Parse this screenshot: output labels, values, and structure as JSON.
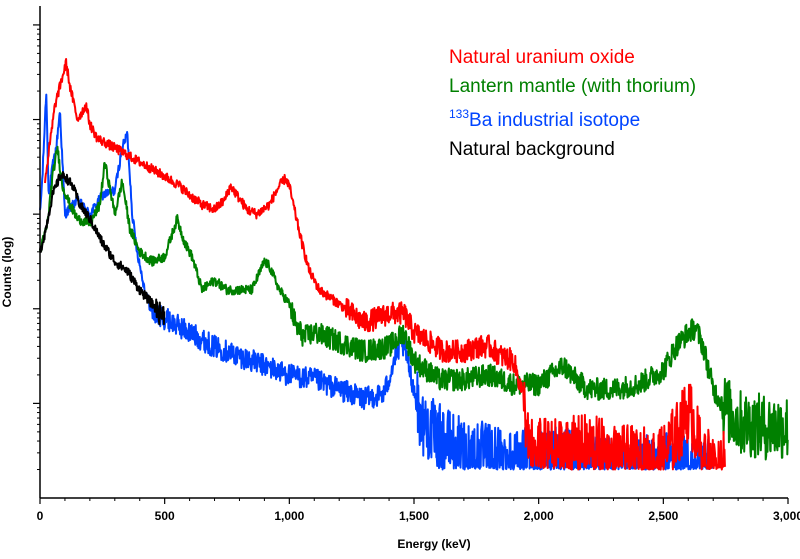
{
  "chart_data": {
    "type": "line",
    "xlabel": "Energy (keV)",
    "ylabel": "Counts (log)",
    "xlim": [
      0,
      3000
    ],
    "y_scale": "log",
    "ylim_decades": [
      0,
      5.2
    ],
    "x_ticks": [
      0,
      500,
      1000,
      1500,
      2000,
      2500,
      3000
    ],
    "x_tick_labels": [
      "0",
      "500",
      "1,000",
      "1,500",
      "2,000",
      "2,500",
      "3,000"
    ],
    "y_tick_decades": [
      1,
      2,
      3,
      4,
      5
    ],
    "y_tick_labels": [],
    "grid": false,
    "legend_position": "top-right",
    "series": [
      {
        "name": "Natural uranium oxide",
        "color": "#ff0000",
        "x": [
          20,
          60,
          90,
          105,
          120,
          150,
          185,
          200,
          230,
          300,
          400,
          500,
          560,
          600,
          650,
          700,
          740,
          765,
          790,
          830,
          870,
          920,
          960,
          985,
          1000,
          1020,
          1050,
          1080,
          1120,
          1200,
          1300,
          1400,
          1460,
          1500,
          1560,
          1620,
          1700,
          1760,
          1800,
          1850,
          1900,
          1940,
          1960,
          2000,
          2100,
          2200,
          2300,
          2400,
          2500,
          2560,
          2600,
          2620,
          2650,
          2700,
          2750
        ],
        "y_decades": [
          3.35,
          4.15,
          4.45,
          4.6,
          4.35,
          4.0,
          4.15,
          3.95,
          3.8,
          3.7,
          3.55,
          3.4,
          3.3,
          3.2,
          3.1,
          3.05,
          3.15,
          3.3,
          3.2,
          3.05,
          3.0,
          3.1,
          3.3,
          3.38,
          3.3,
          3.05,
          2.7,
          2.4,
          2.2,
          2.05,
          1.85,
          1.95,
          1.95,
          1.75,
          1.65,
          1.55,
          1.55,
          1.6,
          1.6,
          1.5,
          1.45,
          1.05,
          0.5,
          0.5,
          0.5,
          0.55,
          0.45,
          0.4,
          0.45,
          0.7,
          0.95,
          0.8,
          0.5,
          0.4,
          0.35
        ]
      },
      {
        "name": "Lantern mantle (with thorium)",
        "color": "#008000",
        "x": [
          0,
          30,
          50,
          70,
          90,
          120,
          150,
          200,
          240,
          260,
          300,
          330,
          360,
          400,
          450,
          500,
          550,
          580,
          610,
          650,
          700,
          750,
          800,
          850,
          900,
          920,
          960,
          1000,
          1030,
          1060,
          1100,
          1200,
          1300,
          1400,
          1460,
          1500,
          1550,
          1600,
          1700,
          1800,
          1900,
          2000,
          2050,
          2100,
          2150,
          2200,
          2300,
          2400,
          2500,
          2550,
          2600,
          2630,
          2660,
          2700,
          2750,
          2800,
          2900,
          3000
        ],
        "y_decades": [
          2.6,
          2.9,
          3.4,
          3.7,
          3.3,
          3.1,
          2.95,
          2.9,
          3.1,
          3.55,
          3.0,
          3.35,
          2.85,
          2.6,
          2.5,
          2.55,
          2.95,
          2.7,
          2.55,
          2.2,
          2.3,
          2.2,
          2.2,
          2.2,
          2.5,
          2.45,
          2.2,
          2.05,
          1.8,
          1.7,
          1.75,
          1.65,
          1.55,
          1.6,
          1.75,
          1.45,
          1.35,
          1.25,
          1.25,
          1.3,
          1.2,
          1.2,
          1.3,
          1.4,
          1.25,
          1.15,
          1.15,
          1.2,
          1.35,
          1.6,
          1.75,
          1.8,
          1.6,
          1.15,
          0.95,
          0.8,
          0.75,
          0.75
        ]
      },
      {
        "name": "133Ba industrial isotope",
        "color": "#0044ff",
        "x": [
          0,
          10,
          25,
          35,
          50,
          65,
          80,
          100,
          150,
          200,
          250,
          300,
          330,
          350,
          370,
          390,
          420,
          450,
          500,
          600,
          700,
          800,
          900,
          1000,
          1100,
          1200,
          1300,
          1380,
          1420,
          1450,
          1470,
          1500,
          1530,
          1600,
          1700,
          1800,
          1900,
          2000,
          2100,
          2200,
          2300,
          2400,
          2500,
          2600,
          2700
        ],
        "y_decades": [
          3.0,
          3.4,
          4.3,
          3.2,
          3.5,
          3.7,
          4.1,
          3.0,
          3.15,
          3.0,
          3.2,
          3.25,
          3.7,
          3.85,
          3.0,
          2.6,
          2.2,
          1.95,
          1.9,
          1.75,
          1.6,
          1.5,
          1.4,
          1.3,
          1.25,
          1.15,
          1.05,
          1.1,
          1.45,
          1.65,
          1.5,
          1.15,
          0.8,
          0.65,
          0.5,
          0.45,
          0.4,
          0.4,
          0.4,
          0.35,
          0.3,
          0.3,
          0.35,
          0.3,
          0.3
        ]
      },
      {
        "name": "Natural background",
        "color": "#000000",
        "x": [
          0,
          20,
          50,
          80,
          100,
          130,
          160,
          200,
          250,
          300,
          350,
          400,
          450,
          480,
          500
        ],
        "y_decades": [
          2.6,
          2.8,
          3.2,
          3.4,
          3.4,
          3.3,
          3.1,
          2.95,
          2.7,
          2.5,
          2.4,
          2.2,
          2.05,
          1.95,
          1.95
        ]
      }
    ]
  },
  "legend": {
    "uranium": "Natural uranium oxide",
    "thorium": "Lantern mantle (with thorium)",
    "barium_sup": "133",
    "barium_rest": "Ba industrial isotope",
    "background": "Natural background"
  }
}
